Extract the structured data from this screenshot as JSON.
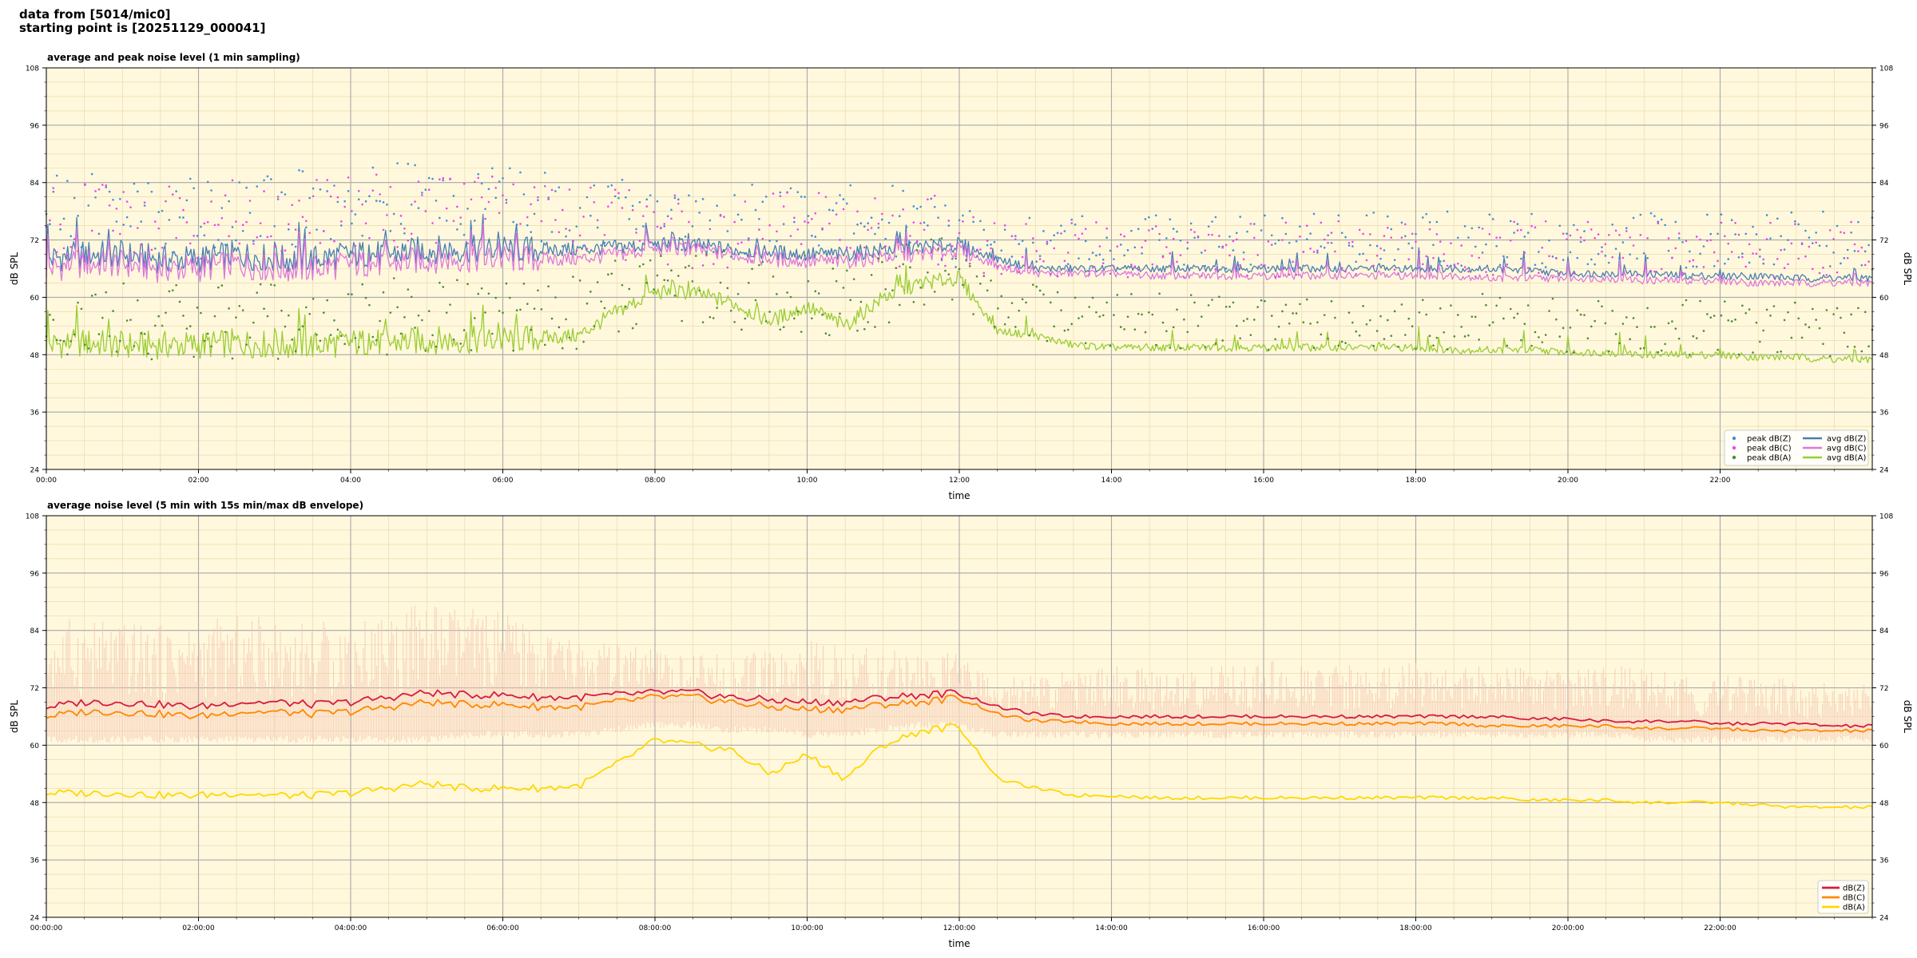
{
  "header": {
    "line1": "data from [5014/mic0]",
    "line2": "starting point is [20251129_000041]"
  },
  "chart_data": [
    {
      "type": "line",
      "title": "average and peak noise level (1 min sampling)",
      "xlabel": "time",
      "ylabel": "dB SPL",
      "xlim": [
        0,
        24
      ],
      "ylim": [
        24,
        108
      ],
      "yticks": [
        24,
        36,
        48,
        60,
        72,
        84,
        96,
        108
      ],
      "xtick_labels": [
        "00:00",
        "02:00",
        "04:00",
        "06:00",
        "08:00",
        "10:00",
        "12:00",
        "14:00",
        "16:00",
        "18:00",
        "20:00",
        "22:00"
      ],
      "grid": true,
      "legend_position": "bottom-right",
      "hours": [
        0,
        0.5,
        1,
        1.5,
        2,
        2.5,
        3,
        3.5,
        4,
        4.5,
        5,
        5.5,
        6,
        6.5,
        7,
        7.5,
        8,
        8.5,
        9,
        9.5,
        10,
        10.5,
        11,
        11.5,
        12,
        12.5,
        13,
        13.5,
        14,
        14.5,
        15,
        15.5,
        16,
        16.5,
        17,
        17.5,
        18,
        18.5,
        19,
        19.5,
        20,
        20.5,
        21,
        21.5,
        22,
        22.5,
        23,
        23.5,
        24
      ],
      "series": [
        {
          "name": "avg dB(Z)",
          "kind": "line",
          "color": "#4a7db4",
          "values": [
            68,
            69,
            69,
            68,
            68,
            69,
            68,
            68,
            69,
            69,
            70,
            70,
            70,
            70,
            70,
            70.5,
            71,
            71,
            70,
            69.5,
            69,
            69,
            70,
            70.5,
            71,
            68,
            66,
            66,
            66,
            66,
            66,
            66,
            66,
            66,
            66,
            66,
            66,
            66,
            66,
            65.5,
            65,
            65,
            65,
            64.5,
            64.5,
            64.5,
            64,
            64,
            64
          ]
        },
        {
          "name": "avg dB(C)",
          "kind": "line",
          "color": "#dd77dd",
          "values": [
            66,
            67,
            67,
            66,
            66,
            67,
            66,
            66,
            67,
            67,
            68,
            68,
            68,
            68,
            68,
            69,
            70,
            70,
            69,
            68,
            67.5,
            67.5,
            68.5,
            69,
            70,
            66.5,
            65,
            65,
            65,
            64.5,
            64.5,
            64.5,
            64.5,
            64.5,
            64.5,
            64.5,
            64.5,
            64.5,
            64,
            64,
            64,
            64,
            63.5,
            63.5,
            63.5,
            63,
            63,
            63,
            63
          ]
        },
        {
          "name": "avg dB(A)",
          "kind": "line",
          "color": "#9acd32",
          "values": [
            50,
            50.5,
            50,
            50,
            50,
            50.5,
            50,
            50,
            50.5,
            50.5,
            51,
            51,
            51,
            51.5,
            52,
            57,
            61,
            61,
            59,
            55,
            58,
            54,
            60,
            63,
            64,
            53,
            52,
            50,
            49.5,
            49.5,
            49.5,
            49.5,
            49.5,
            49.5,
            49.5,
            49.5,
            49.5,
            49,
            49,
            49,
            48.5,
            48.5,
            48,
            48,
            48,
            47.5,
            47.5,
            47,
            47
          ]
        },
        {
          "name": "peak dB(Z)",
          "kind": "scatter",
          "color": "#3f8fdb",
          "values": [
            78,
            78,
            79,
            77,
            78,
            79,
            78,
            79,
            80,
            80,
            81,
            80,
            80,
            79,
            78,
            77,
            77,
            76,
            76,
            76,
            77,
            76,
            76,
            77,
            74,
            72,
            72,
            72,
            72,
            72,
            72,
            72,
            72,
            72,
            72,
            72,
            72,
            72,
            72,
            72,
            72,
            72,
            72,
            72,
            72,
            72,
            72,
            72,
            72
          ]
        },
        {
          "name": "peak dB(C)",
          "kind": "scatter",
          "color": "#ee44ee",
          "values": [
            76,
            76,
            77,
            75,
            76,
            77,
            76,
            77,
            78,
            78,
            79,
            78,
            78,
            77,
            76,
            75,
            75,
            74,
            74,
            74,
            75,
            74,
            74,
            75,
            72,
            70,
            70,
            70,
            70,
            70,
            70,
            70,
            70,
            70,
            70,
            70,
            70,
            70,
            70,
            70,
            70,
            70,
            70,
            70,
            70,
            70,
            70,
            70,
            70
          ]
        },
        {
          "name": "peak dB(A)",
          "kind": "scatter",
          "color": "#4c8a3a",
          "values": [
            55,
            55,
            55,
            55,
            55,
            55,
            55,
            55,
            55,
            56,
            56,
            56,
            56,
            56,
            57,
            60,
            63,
            63,
            62,
            59,
            61,
            58,
            62,
            64,
            65,
            58,
            57,
            55,
            55,
            55,
            55,
            55,
            55,
            55,
            55,
            55,
            55,
            55,
            55,
            55,
            54,
            54,
            54,
            54,
            54,
            53,
            53,
            53,
            53
          ]
        }
      ]
    },
    {
      "type": "line",
      "title": "average noise level (5 min with 15s min/max dB envelope)",
      "xlabel": "time",
      "ylabel": "dB SPL",
      "xlim": [
        0,
        24
      ],
      "ylim": [
        24,
        108
      ],
      "yticks": [
        24,
        36,
        48,
        60,
        72,
        84,
        96,
        108
      ],
      "xtick_labels": [
        "00:00:00",
        "02:00:00",
        "04:00:00",
        "06:00:00",
        "08:00:00",
        "10:00:00",
        "12:00:00",
        "14:00:00",
        "16:00:00",
        "18:00:00",
        "20:00:00",
        "22:00:00"
      ],
      "grid": true,
      "legend_position": "bottom-right",
      "hours": [
        0,
        0.5,
        1,
        1.5,
        2,
        2.5,
        3,
        3.5,
        4,
        4.5,
        5,
        5.5,
        6,
        6.5,
        7,
        7.5,
        8,
        8.5,
        9,
        9.5,
        10,
        10.5,
        11,
        11.5,
        12,
        12.5,
        13,
        13.5,
        14,
        14.5,
        15,
        15.5,
        16,
        16.5,
        17,
        17.5,
        18,
        18.5,
        19,
        19.5,
        20,
        20.5,
        21,
        21.5,
        22,
        22.5,
        23,
        23.5,
        24
      ],
      "envelope": {
        "color": "#f5c6b4",
        "min": [
          62,
          62,
          62,
          62,
          62,
          62,
          62,
          62,
          62,
          62,
          62,
          63,
          63,
          63,
          63,
          64,
          65,
          65,
          64,
          64,
          63,
          63,
          64,
          65,
          65,
          63,
          63,
          63,
          63,
          63,
          63,
          63,
          63,
          63,
          63,
          63,
          63,
          63,
          63,
          63,
          63,
          63,
          62,
          62,
          62,
          62,
          62,
          62,
          62
        ],
        "max": [
          86,
          87,
          86,
          85,
          86,
          87,
          87,
          86,
          87,
          88,
          90,
          89,
          88,
          85,
          83,
          81,
          80,
          79,
          79,
          80,
          82,
          81,
          80,
          80,
          79,
          74,
          75,
          76,
          77,
          76,
          76,
          77,
          78,
          77,
          77,
          77,
          78,
          77,
          77,
          76,
          76,
          77,
          76,
          75,
          75,
          74,
          74,
          73,
          73
        ]
      },
      "series": [
        {
          "name": "dB(Z)",
          "color": "#d81b40",
          "values": [
            68,
            69,
            69,
            68.5,
            68,
            69,
            69,
            68.5,
            69,
            70,
            71,
            70.5,
            70.5,
            70,
            70,
            70.5,
            71,
            71,
            70,
            69.5,
            69,
            69,
            70,
            70.5,
            71,
            68,
            66.5,
            66,
            66,
            66,
            66,
            66,
            66,
            66,
            66,
            66,
            66,
            66,
            66,
            65.5,
            65.5,
            65,
            65,
            65,
            64.5,
            64.5,
            64.5,
            64,
            64
          ]
        },
        {
          "name": "dB(C)",
          "color": "#ff8800",
          "values": [
            66,
            67,
            67,
            66.5,
            66,
            67,
            67,
            66.5,
            67,
            68,
            69,
            68.5,
            68.5,
            68,
            68,
            69,
            70,
            70,
            69,
            68,
            67.5,
            67.5,
            68.5,
            69,
            70,
            66.5,
            65,
            65,
            64.5,
            64.5,
            64.5,
            64.5,
            64.5,
            64.5,
            64.5,
            64.5,
            64.5,
            64.5,
            64,
            64,
            64,
            64,
            63.5,
            63.5,
            63.5,
            63,
            63,
            63,
            63
          ]
        },
        {
          "name": "dB(A)",
          "color": "#ffd700",
          "values": [
            50,
            50,
            50,
            49.5,
            49.5,
            50,
            49.5,
            49.5,
            50,
            51,
            52,
            51,
            51,
            51,
            51.5,
            56,
            61,
            60,
            59,
            54,
            58,
            53,
            60,
            63,
            64,
            53,
            51,
            49.5,
            49.5,
            49,
            49,
            49,
            49,
            49,
            49,
            49,
            49,
            49,
            49,
            48.5,
            48.5,
            48.5,
            48,
            48,
            48,
            47.5,
            47,
            47,
            47
          ]
        }
      ]
    }
  ]
}
